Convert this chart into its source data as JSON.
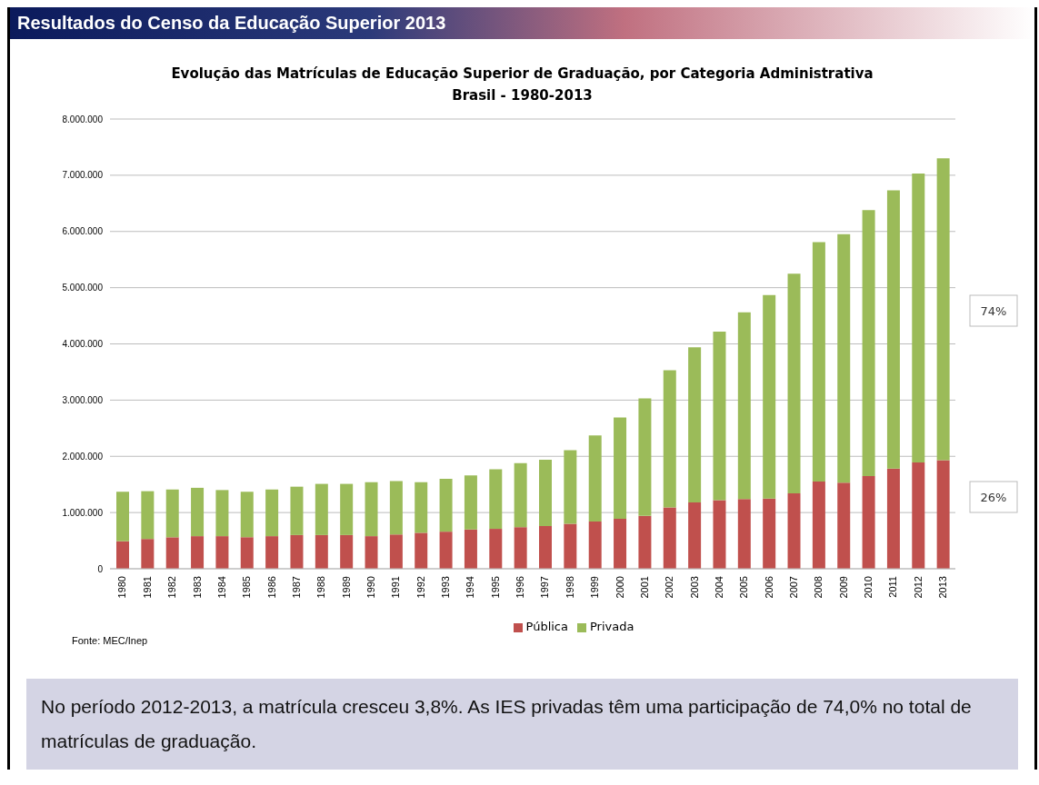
{
  "chart_data": {
    "type": "bar",
    "title": "Evolução das Matrículas de Educação Superior de Graduação, por Categoria Administrativa",
    "subtitle": "Brasil - 1980-2013",
    "categories": [
      "1980",
      "1981",
      "1982",
      "1983",
      "1984",
      "1985",
      "1986",
      "1987",
      "1988",
      "1989",
      "1990",
      "1991",
      "1992",
      "1993",
      "1994",
      "1995",
      "1996",
      "1997",
      "1998",
      "1999",
      "2000",
      "2001",
      "2002",
      "2003",
      "2004",
      "2005",
      "2006",
      "2007",
      "2008",
      "2009",
      "2010",
      "2011",
      "2012",
      "2013"
    ],
    "series": [
      {
        "name": "Pública",
        "color": "#c0504d",
        "values": [
          490000,
          530000,
          560000,
          580000,
          580000,
          560000,
          580000,
          600000,
          600000,
          600000,
          580000,
          610000,
          640000,
          660000,
          700000,
          710000,
          740000,
          760000,
          800000,
          840000,
          890000,
          940000,
          1090000,
          1180000,
          1220000,
          1240000,
          1250000,
          1340000,
          1550000,
          1530000,
          1650000,
          1780000,
          1890000,
          1930000
        ]
      },
      {
        "name": "Privada",
        "color": "#9bbb59",
        "values": [
          880000,
          850000,
          850000,
          860000,
          820000,
          810000,
          830000,
          860000,
          910000,
          910000,
          960000,
          950000,
          900000,
          940000,
          960000,
          1060000,
          1140000,
          1180000,
          1310000,
          1530000,
          1800000,
          2090000,
          2440000,
          2760000,
          3000000,
          3320000,
          3620000,
          3910000,
          4260000,
          4420000,
          4730000,
          4950000,
          5140000,
          5370000
        ]
      }
    ],
    "stacked": true,
    "ylim": [
      0,
      8000000
    ],
    "yticks": [
      0,
      {
        "value": 1000000,
        "label": "1.000.000"
      },
      {
        "value": 2000000,
        "label": "2.000.000"
      },
      {
        "value": 3000000,
        "label": "3.000.000"
      },
      {
        "value": 4000000,
        "label": "4.000.000"
      },
      {
        "value": 5000000,
        "label": "5.000.000"
      },
      {
        "value": 6000000,
        "label": "6.000.000"
      },
      {
        "value": 7000000,
        "label": "7.000.000"
      },
      {
        "value": 8000000,
        "label": "8.000.000"
      }
    ],
    "grid": "y",
    "legend": "bottom",
    "annotations": [
      "Resultados do Censo da Educação Superior 2013",
      "Fonte: MEC/Inep",
      "No período 2012-2013, a matrícula cresceu 3,8%. As IES privadas têm uma participação de 74,0% no total de matrículas de graduação.",
      "74%",
      "26%"
    ]
  }
}
